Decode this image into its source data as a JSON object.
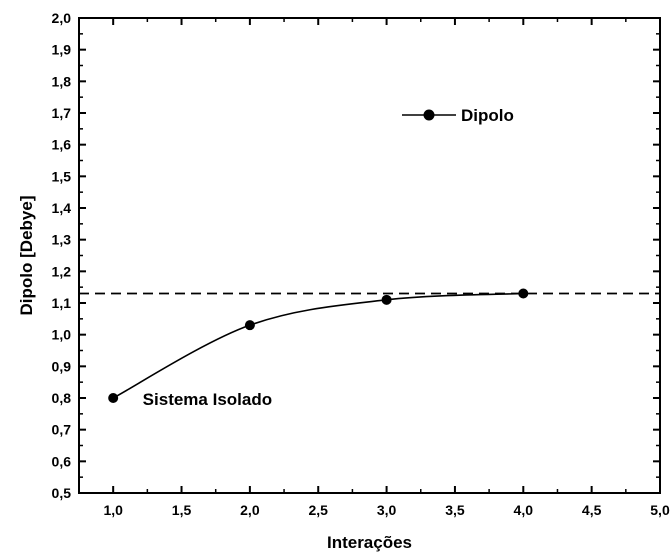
{
  "chart_data": {
    "type": "line",
    "xlabel": "Interações",
    "ylabel": "Dipolo [Debye]",
    "xlim": [
      0.75,
      5.0
    ],
    "ylim": [
      0.5,
      2.0
    ],
    "x_ticks": [
      "1,0",
      "1,5",
      "2,0",
      "2,5",
      "3,0",
      "3,5",
      "4,0",
      "4,5",
      "5,0"
    ],
    "x_tick_values": [
      1.0,
      1.5,
      2.0,
      2.5,
      3.0,
      3.5,
      4.0,
      4.5,
      5.0
    ],
    "y_ticks": [
      "0,5",
      "0,6",
      "0,7",
      "0,8",
      "0,9",
      "1,0",
      "1,1",
      "1,2",
      "1,3",
      "1,4",
      "1,5",
      "1,6",
      "1,7",
      "1,8",
      "1,9",
      "2,0"
    ],
    "y_tick_values": [
      0.5,
      0.6,
      0.7,
      0.8,
      0.9,
      1.0,
      1.1,
      1.2,
      1.3,
      1.4,
      1.5,
      1.6,
      1.7,
      1.8,
      1.9,
      2.0
    ],
    "series": [
      {
        "name": "Dipolo",
        "x": [
          1,
          2,
          3,
          4
        ],
        "y": [
          0.8,
          1.03,
          1.11,
          1.13
        ],
        "color": "#000000",
        "smooth": true
      }
    ],
    "reference_line": {
      "y": 1.13,
      "style": "dashed",
      "color": "#000000"
    },
    "annotations": [
      {
        "text": "Sistema Isolado",
        "x": 1.15,
        "y": 0.8
      }
    ],
    "legend": {
      "position": "top-right"
    },
    "grid": false
  }
}
